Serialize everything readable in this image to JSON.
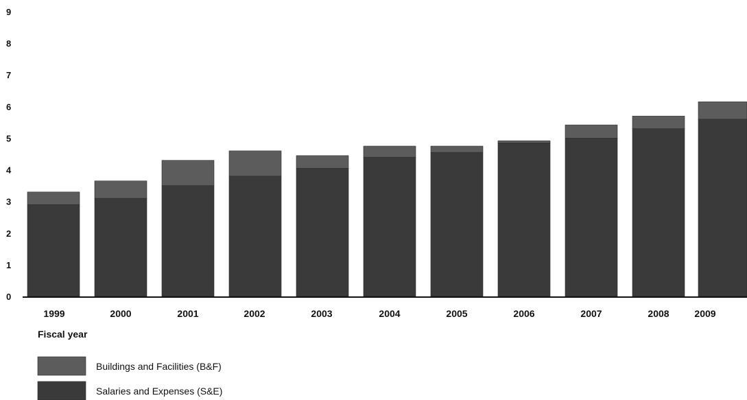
{
  "chart_data": {
    "type": "bar",
    "stacked": true,
    "title": "",
    "xlabel": "Fiscal year",
    "ylabel": "",
    "ylim": [
      0,
      9
    ],
    "y_ticks": [
      "0",
      "1",
      "2",
      "3",
      "4",
      "5",
      "6",
      "7",
      "8",
      "9"
    ],
    "categories": [
      "1999",
      "2000",
      "2001",
      "2002",
      "2003",
      "2004",
      "2005",
      "2006",
      "2007",
      "2008",
      "2009"
    ],
    "series": [
      {
        "name": "Salaries and Expenses (S&E)",
        "color": "#3a3a3a",
        "values": [
          2.9,
          3.1,
          3.5,
          3.8,
          4.05,
          4.4,
          4.55,
          4.85,
          5.0,
          5.3,
          5.6
        ]
      },
      {
        "name": "Buildings and Facilities (B&F)",
        "color": "#5c5c5c",
        "values": [
          0.4,
          0.55,
          0.8,
          0.8,
          0.4,
          0.35,
          0.2,
          0.07,
          0.42,
          0.4,
          0.55
        ]
      }
    ],
    "grid": false,
    "legend_position": "bottom-left"
  }
}
